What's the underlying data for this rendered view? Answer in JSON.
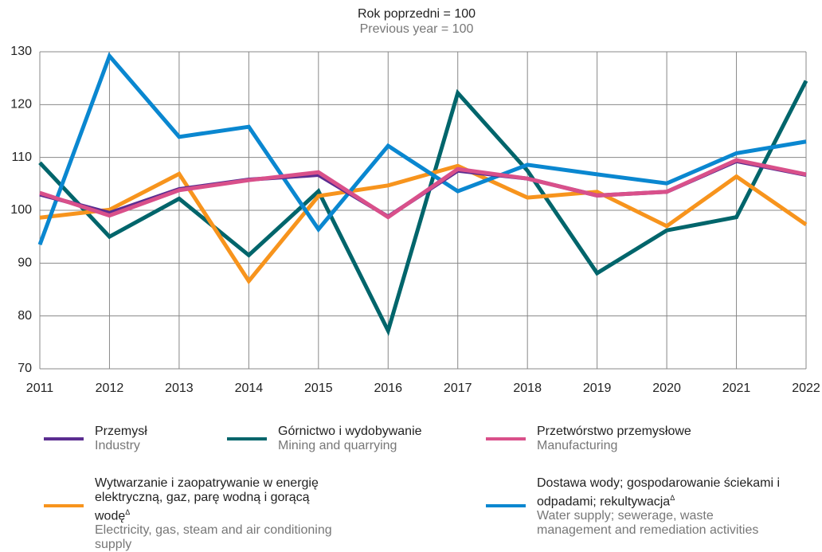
{
  "chart_data": {
    "type": "line",
    "title": "Rok poprzedni = 100",
    "subtitle": "Previous year = 100",
    "x": [
      2011,
      2012,
      2013,
      2014,
      2015,
      2016,
      2017,
      2018,
      2019,
      2020,
      2021,
      2022
    ],
    "xlim": [
      2011,
      2022
    ],
    "xticks": [
      2011,
      2012,
      2013,
      2014,
      2015,
      2016,
      2017,
      2018,
      2019,
      2020,
      2021,
      2022
    ],
    "ylim": [
      70,
      130
    ],
    "yticks": [
      70,
      80,
      90,
      100,
      110,
      120,
      130
    ],
    "grid": true,
    "series": [
      {
        "name": "Górnictwo i wydobywanie",
        "name_en": "Mining and quarrying",
        "color": "#00656b",
        "values": [
          109,
          95,
          102.2,
          91.5,
          103.6,
          77.2,
          122.2,
          107.5,
          88.1,
          96.2,
          98.7,
          124.5
        ]
      },
      {
        "name": "Wytwarzanie i zaopatrywanie w energię elektryczną, gaz, parę wodną i gorącą wodę",
        "name_mark": "Δ",
        "name_en": "Electricity, gas, steam and air conditioning supply",
        "color": "#f7941d",
        "values": [
          98.6,
          100.1,
          106.9,
          86.6,
          102.7,
          104.7,
          108.4,
          102.4,
          103.5,
          97,
          106.4,
          97.3
        ]
      },
      {
        "name": "Dostawa wody; gospodarowanie ściekami i odpadami; rekultywacja",
        "name_mark": "Δ",
        "name_en": "Water supply; sewerage, waste management and remediation activities",
        "color": "#0a87d0",
        "values": [
          93.5,
          129.2,
          113.9,
          115.8,
          96.4,
          112.2,
          103.6,
          108.6,
          106.8,
          105.1,
          110.8,
          113
        ]
      },
      {
        "name": "Przemysł",
        "name_en": "Industry",
        "color": "#5b2d90",
        "values": [
          103,
          99.5,
          104,
          105.8,
          106.7,
          98.8,
          107.5,
          106,
          102.8,
          103.5,
          109.3,
          106.7
        ]
      },
      {
        "name": "Przetwórstwo przemysłowe",
        "name_en": "Manufacturing",
        "color": "#d9508a",
        "values": [
          103.3,
          99,
          103.8,
          105.7,
          107.2,
          98.7,
          107.8,
          106,
          102.8,
          103.5,
          109.5,
          106.8
        ]
      }
    ]
  }
}
